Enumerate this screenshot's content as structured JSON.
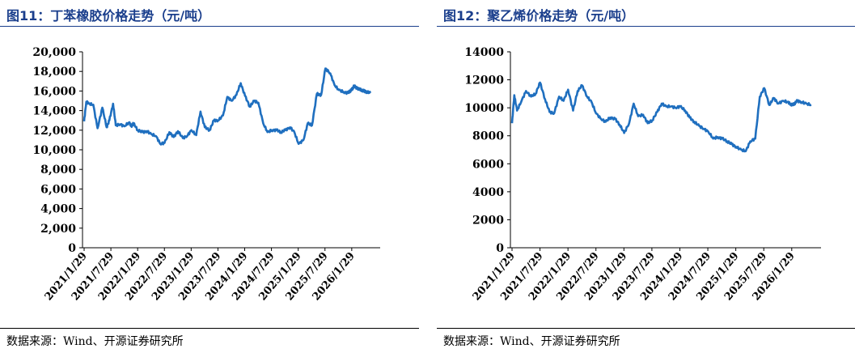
{
  "panels": [
    {
      "title": "图11：丁苯橡胶价格走势（元/吨）",
      "source": "数据来源：Wind、开源证券研究所"
    },
    {
      "title": "图12：聚乙烯价格走势（元/吨）",
      "source": "数据来源：Wind、开源证券研究所"
    }
  ],
  "chart_data": [
    {
      "type": "line",
      "title": "图11：丁苯橡胶价格走势（元/吨）",
      "ylim": [
        0,
        20000
      ],
      "ytick_labels": [
        "0",
        "2,000",
        "4,000",
        "6,000",
        "8,000",
        "10,000",
        "12,000",
        "14,000",
        "16,000",
        "18,000",
        "20,000"
      ],
      "ytick_values": [
        0,
        2000,
        4000,
        6000,
        8000,
        10000,
        12000,
        14000,
        16000,
        18000,
        20000
      ],
      "xtick_labels": [
        "2021/1/29",
        "2021/7/29",
        "2022/1/29",
        "2022/7/29",
        "2023/1/29",
        "2023/7/29",
        "2024/1/29",
        "2024/7/29",
        "2025/1/29",
        "2025/7/29",
        "2026/1/29"
      ],
      "x_range": [
        2021.08,
        2026.42
      ],
      "line_color": "#1f6fbf",
      "series": [
        {
          "x": [
            2021.08,
            2021.12,
            2021.17,
            2021.25,
            2021.33,
            2021.42,
            2021.5,
            2021.55,
            2021.62,
            2021.67,
            2021.75,
            2021.83,
            2021.92,
            2021.96,
            2022.0,
            2022.08,
            2022.17,
            2022.25,
            2022.33,
            2022.42,
            2022.5,
            2022.58,
            2022.67,
            2022.75,
            2022.83,
            2022.92,
            2023.0,
            2023.08,
            2023.17,
            2023.25,
            2023.33,
            2023.42,
            2023.5,
            2023.58,
            2023.67,
            2023.75,
            2023.83,
            2023.92,
            2024.0,
            2024.08,
            2024.17,
            2024.25,
            2024.33,
            2024.42,
            2024.5,
            2024.58,
            2024.67,
            2024.75,
            2024.83,
            2024.92,
            2025.0,
            2025.08,
            2025.17,
            2025.25,
            2025.33,
            2025.42,
            2025.5,
            2025.58,
            2025.67,
            2025.75,
            2025.83,
            2025.92,
            2026.0,
            2026.04,
            2026.08,
            2026.1,
            2026.12,
            2026.14,
            2026.17,
            2026.2,
            2026.25,
            2026.3,
            2026.35,
            2026.42
          ],
          "values": [
            12900,
            14900,
            14700,
            14600,
            12200,
            14300,
            12300,
            13000,
            14700,
            12500,
            12600,
            12400,
            12800,
            12400,
            12700,
            12000,
            11800,
            11900,
            11600,
            11400,
            10600,
            10700,
            11800,
            11300,
            11900,
            11200,
            11400,
            12000,
            11500,
            13900,
            12300,
            12000,
            13000,
            13000,
            13500,
            15400,
            15000,
            15600,
            16800,
            15500,
            14400,
            15000,
            14800,
            12700,
            11800,
            12000,
            12000,
            11800,
            12000,
            12300,
            11800,
            10600,
            11000,
            12700,
            12500,
            15700,
            15600,
            18300,
            17800,
            16600,
            16100,
            15900,
            15800,
            16000,
            16200,
            16400,
            16500,
            16400,
            16300,
            16200,
            16100,
            16000,
            15900,
            15800
          ]
        }
      ]
    },
    {
      "type": "line",
      "title": "图12：聚乙烯价格走势（元/吨）",
      "ylim": [
        0,
        14000
      ],
      "ytick_labels": [
        "0",
        "2000",
        "4000",
        "6000",
        "8000",
        "10000",
        "12000",
        "14000"
      ],
      "ytick_values": [
        0,
        2000,
        4000,
        6000,
        8000,
        10000,
        12000,
        14000
      ],
      "xtick_labels": [
        "2021/1/29",
        "2021/7/29",
        "2022/1/29",
        "2022/7/29",
        "2023/1/29",
        "2023/7/29",
        "2024/1/29",
        "2024/7/29",
        "2025/1/29",
        "2025/7/29",
        "2026/1/29"
      ],
      "x_range": [
        2021.08,
        2026.42
      ],
      "line_color": "#1f6fbf",
      "series": [
        {
          "x": [
            2021.08,
            2021.12,
            2021.17,
            2021.25,
            2021.33,
            2021.42,
            2021.5,
            2021.58,
            2021.67,
            2021.75,
            2021.83,
            2021.92,
            2022.0,
            2022.08,
            2022.17,
            2022.25,
            2022.33,
            2022.42,
            2022.5,
            2022.58,
            2022.67,
            2022.75,
            2022.83,
            2022.92,
            2023.0,
            2023.08,
            2023.17,
            2023.25,
            2023.33,
            2023.42,
            2023.5,
            2023.58,
            2023.67,
            2023.75,
            2023.83,
            2023.92,
            2024.0,
            2024.08,
            2024.17,
            2024.25,
            2024.33,
            2024.42,
            2024.5,
            2024.58,
            2024.67,
            2024.75,
            2024.83,
            2024.92,
            2025.0,
            2025.08,
            2025.17,
            2025.25,
            2025.33,
            2025.42,
            2025.5,
            2025.58,
            2025.67,
            2025.75,
            2025.83,
            2025.92,
            2026.0,
            2026.04,
            2026.08,
            2026.12,
            2026.17,
            2026.25,
            2026.33,
            2026.42
          ],
          "values": [
            8900,
            10900,
            9800,
            10500,
            11200,
            10800,
            11000,
            11800,
            10600,
            9700,
            9600,
            10800,
            10500,
            11300,
            9800,
            11200,
            11600,
            10800,
            10400,
            9600,
            9200,
            9000,
            9300,
            9200,
            8800,
            8200,
            8900,
            10300,
            9400,
            9500,
            8900,
            9100,
            9700,
            10300,
            10100,
            10100,
            10000,
            10100,
            9800,
            9300,
            9000,
            8700,
            8500,
            8300,
            7800,
            7900,
            7800,
            7600,
            7400,
            7200,
            7000,
            6900,
            7600,
            7800,
            10800,
            11400,
            10200,
            10700,
            10300,
            10500,
            10400,
            10300,
            10200,
            10300,
            10500,
            10400,
            10300,
            10200
          ]
        }
      ]
    }
  ]
}
